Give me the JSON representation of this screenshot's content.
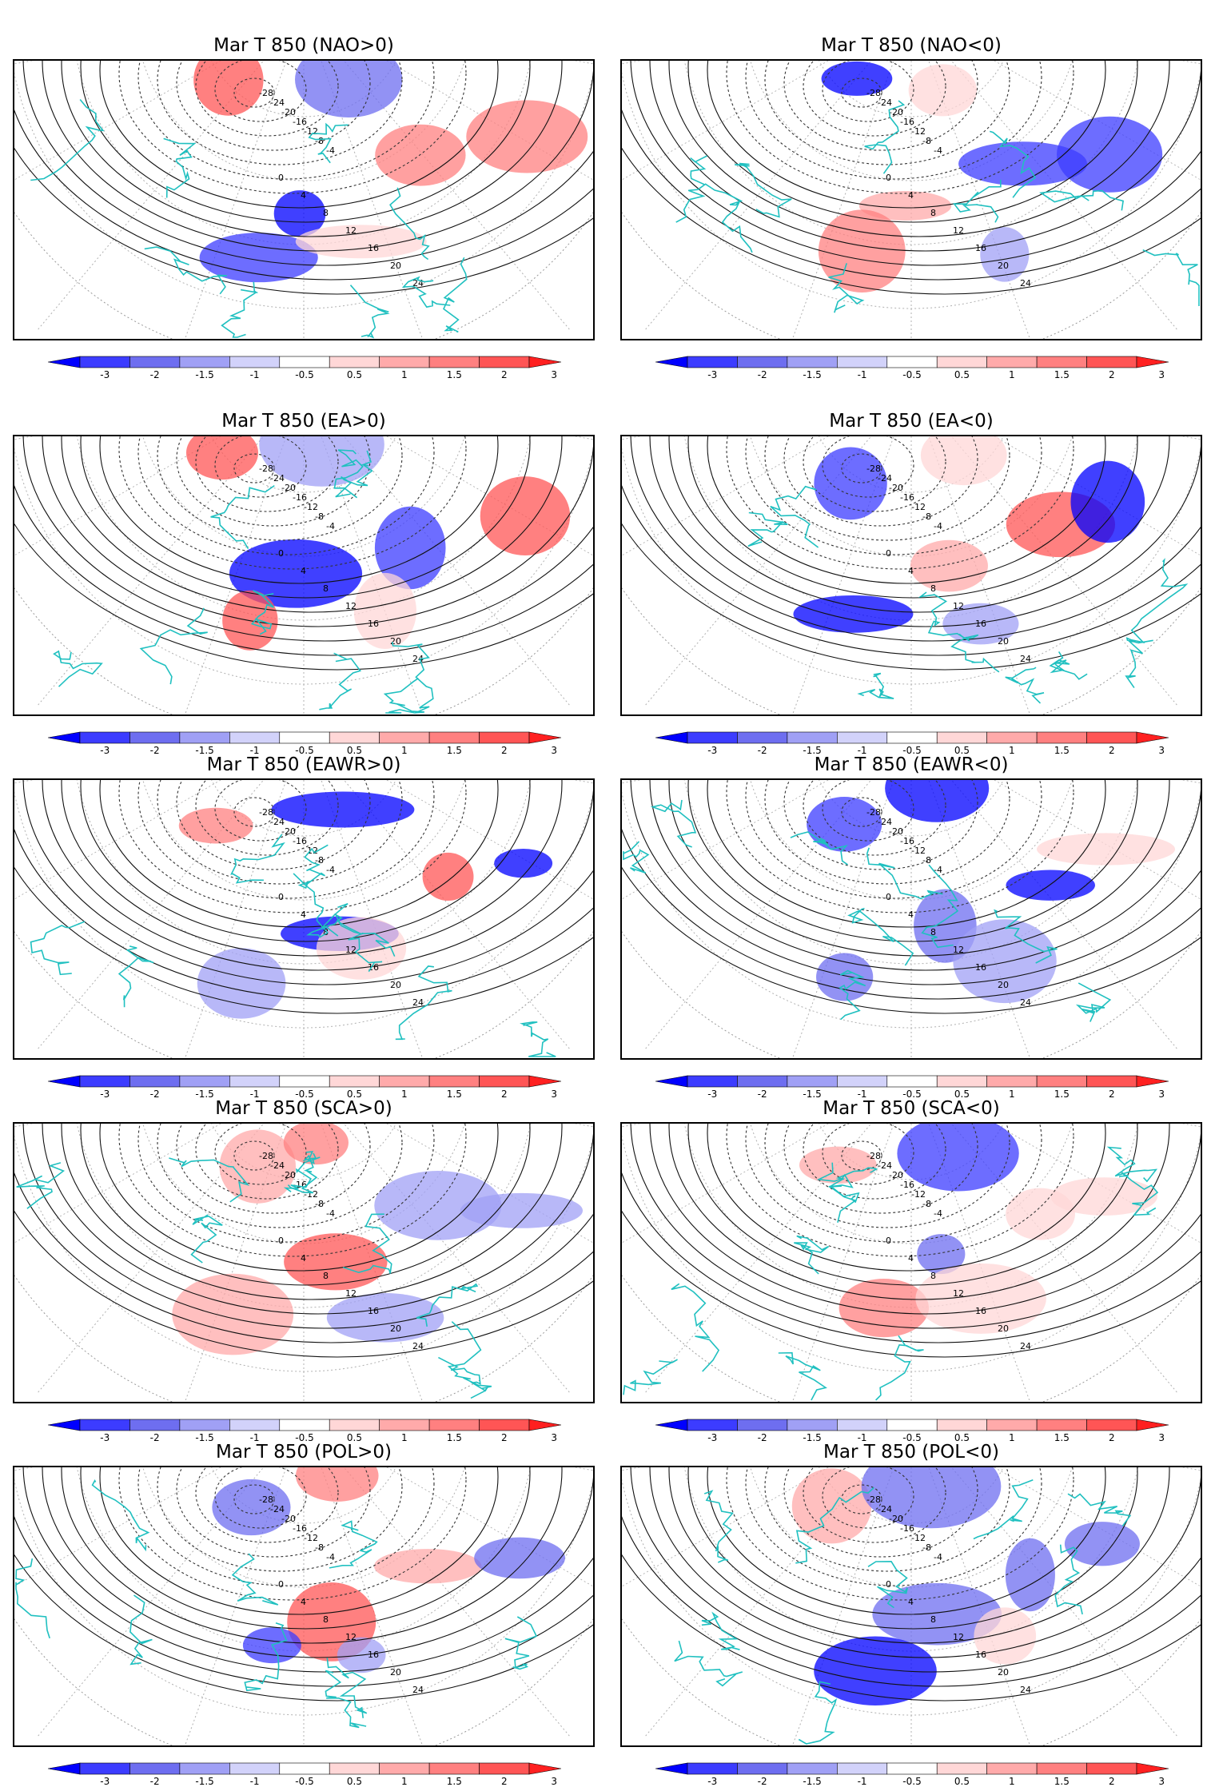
{
  "panels": [
    {
      "title": "Mar T 850  (NAO>0)"
    },
    {
      "title": "Mar T 850  (NAO<0)"
    },
    {
      "title": "Mar T 850  (EA>0)"
    },
    {
      "title": "Mar T 850  (EA<0)"
    },
    {
      "title": "Mar T 850  (EAWR>0)"
    },
    {
      "title": "Mar T 850  (EAWR<0)"
    },
    {
      "title": "Mar T 850  (SCA>0)"
    },
    {
      "title": "Mar T 850  (SCA<0)"
    },
    {
      "title": "Mar T 850  (POL>0)"
    },
    {
      "title": "Mar T 850  (POL<0)"
    }
  ],
  "colorbar": {
    "ticks": [
      "-3",
      "-2",
      "-1.5",
      "-1",
      "-0.5",
      "0.5",
      "1",
      "1.5",
      "2",
      "3"
    ],
    "colors": [
      "#0000ff",
      "#3c3cff",
      "#6e6ef0",
      "#a0a0f5",
      "#d2d2fa",
      "#ffffff",
      "#ffd7d7",
      "#ffaaaa",
      "#ff8080",
      "#ff5555",
      "#ff2020"
    ]
  },
  "contour_labels": {
    "negative": [
      "-28",
      "-24",
      "-20",
      "-16",
      "-12",
      "-8",
      "-4"
    ],
    "positive": [
      "0",
      "4",
      "8",
      "12",
      "16",
      "20",
      "24"
    ]
  }
}
